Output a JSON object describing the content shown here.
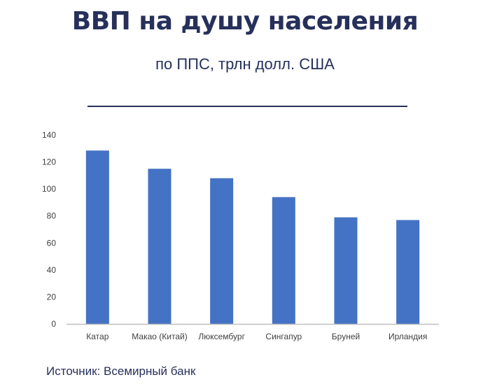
{
  "header": {
    "title": "ВВП на душу населения",
    "subtitle": "по ППС, трлн долл. США"
  },
  "footer": {
    "source": "Источник:  Всемирный банк"
  },
  "colors": {
    "bar": "#4472c4",
    "title": "#26305a",
    "axis": "#bfbfbf",
    "tick_label": "#404040"
  },
  "chart_data": {
    "type": "bar",
    "title": "ВВП на душу населения",
    "subtitle": "по ППС, трлн долл. США",
    "xlabel": "",
    "ylabel": "",
    "categories": [
      "Катар",
      "Макао (Китай)",
      "Люксембург",
      "Сингапур",
      "Бруней",
      "Ирландия"
    ],
    "values": [
      128.5,
      115,
      108,
      94,
      79,
      77
    ],
    "ylim": [
      0,
      140
    ],
    "yticks": [
      0,
      20,
      40,
      60,
      80,
      100,
      120,
      140
    ],
    "grid": false,
    "legend": "none"
  }
}
